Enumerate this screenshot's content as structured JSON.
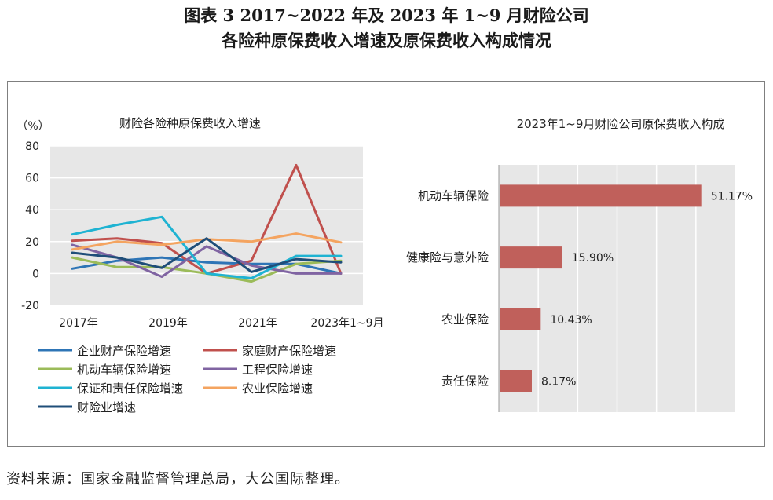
{
  "title_line1": "图表 3  2017~2022 年及 2023 年 1~9 月财险公司",
  "title_line2": "各险种原保费收入增速及原保费收入构成情况",
  "source": "资料来源：国家金融监督管理总局，大公国际整理。",
  "chart_data": [
    {
      "type": "line",
      "title": "财险各险种原保费收入增速",
      "ylabel": "（%）",
      "ylim": [
        -20,
        80
      ],
      "yticks": [
        -20,
        0,
        20,
        40,
        60,
        80
      ],
      "x": [
        "2017年",
        "2018年",
        "2019年",
        "2020年",
        "2021年",
        "2022年",
        "2023年1~9月"
      ],
      "xtick_labels": [
        "2017年",
        "2019年",
        "2021年",
        "2023年1~9月"
      ],
      "grid": true,
      "legend_position": "bottom",
      "series": [
        {
          "name": "企业财产保险增速",
          "color": "#2e75b6",
          "values": [
            3,
            8,
            10,
            7,
            6,
            6,
            0
          ]
        },
        {
          "name": "家庭财产保险增速",
          "color": "#c0504d",
          "values": [
            20.5,
            22,
            19,
            0,
            8,
            68,
            0
          ]
        },
        {
          "name": "机动车辆保险增速",
          "color": "#9bbb59",
          "values": [
            10,
            4,
            4,
            0,
            -5,
            6,
            8
          ]
        },
        {
          "name": "工程保险增速",
          "color": "#8064a2",
          "values": [
            18,
            10,
            -2,
            17,
            5,
            0,
            0
          ]
        },
        {
          "name": "保证和责任保险增速",
          "color": "#1fb3d2",
          "values": [
            24.5,
            30.5,
            35.5,
            0,
            -3,
            11,
            11
          ]
        },
        {
          "name": "农业保险增速",
          "color": "#f4a460",
          "values": [
            15,
            20,
            18,
            21.5,
            20,
            25,
            19.5
          ]
        },
        {
          "name": "财险业增速",
          "color": "#1f4e79",
          "values": [
            13,
            10,
            3.5,
            22,
            1,
            9,
            7
          ]
        }
      ]
    },
    {
      "type": "bar",
      "orientation": "horizontal",
      "title": "2023年1~9月财险公司原保费收入构成",
      "categories": [
        "机动车辆保险",
        "健康险与意外险",
        "农业保险",
        "责任保险"
      ],
      "values": [
        51.17,
        15.9,
        10.43,
        8.17
      ],
      "value_labels": [
        "51.17%",
        "15.90%",
        "10.43%",
        "8.17%"
      ],
      "xlim": [
        0,
        60
      ],
      "grid": true,
      "bar_color": "#c0605b"
    }
  ]
}
